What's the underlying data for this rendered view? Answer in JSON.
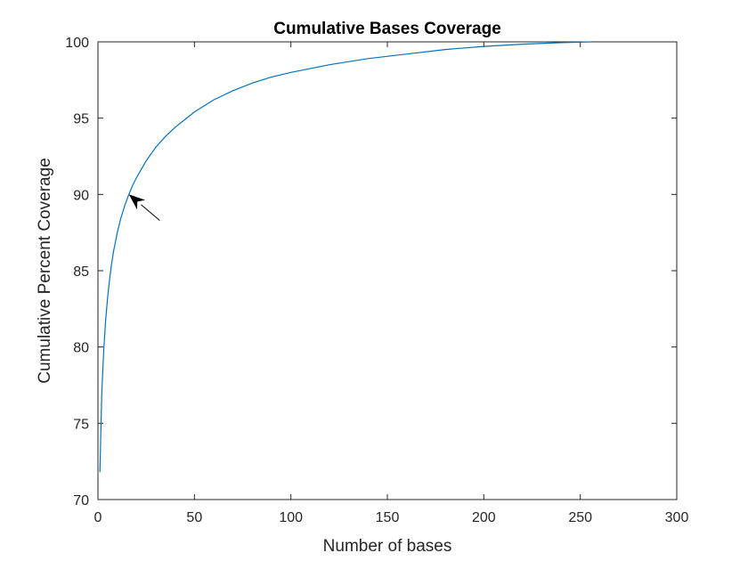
{
  "chart_data": {
    "type": "line",
    "title": "Cumulative Bases Coverage",
    "xlabel": "Number of bases",
    "ylabel": "Cumulative Percent Coverage",
    "xlim": [
      0,
      300
    ],
    "ylim": [
      70,
      100
    ],
    "xticks": [
      0,
      50,
      100,
      150,
      200,
      250,
      300
    ],
    "yticks": [
      70,
      75,
      80,
      85,
      90,
      95,
      100
    ],
    "grid": false,
    "series": [
      {
        "color": "#0072BD",
        "x": [
          1,
          2,
          3,
          4,
          5,
          6,
          7,
          8,
          10,
          12,
          14,
          16,
          18,
          20,
          25,
          30,
          35,
          40,
          45,
          50,
          60,
          70,
          80,
          90,
          100,
          120,
          140,
          160,
          180,
          200,
          220,
          240,
          256
        ],
        "y": [
          71.8,
          77.0,
          79.8,
          81.8,
          83.2,
          84.4,
          85.4,
          86.2,
          87.5,
          88.5,
          89.3,
          90.0,
          90.6,
          91.1,
          92.2,
          93.1,
          93.8,
          94.4,
          94.9,
          95.4,
          96.2,
          96.8,
          97.3,
          97.7,
          98.0,
          98.5,
          98.9,
          99.2,
          99.5,
          99.7,
          99.85,
          99.95,
          100.0
        ]
      }
    ],
    "annotations": [
      {
        "type": "arrow",
        "from": [
          32,
          88.3
        ],
        "to": [
          16,
          90.0
        ]
      }
    ]
  }
}
